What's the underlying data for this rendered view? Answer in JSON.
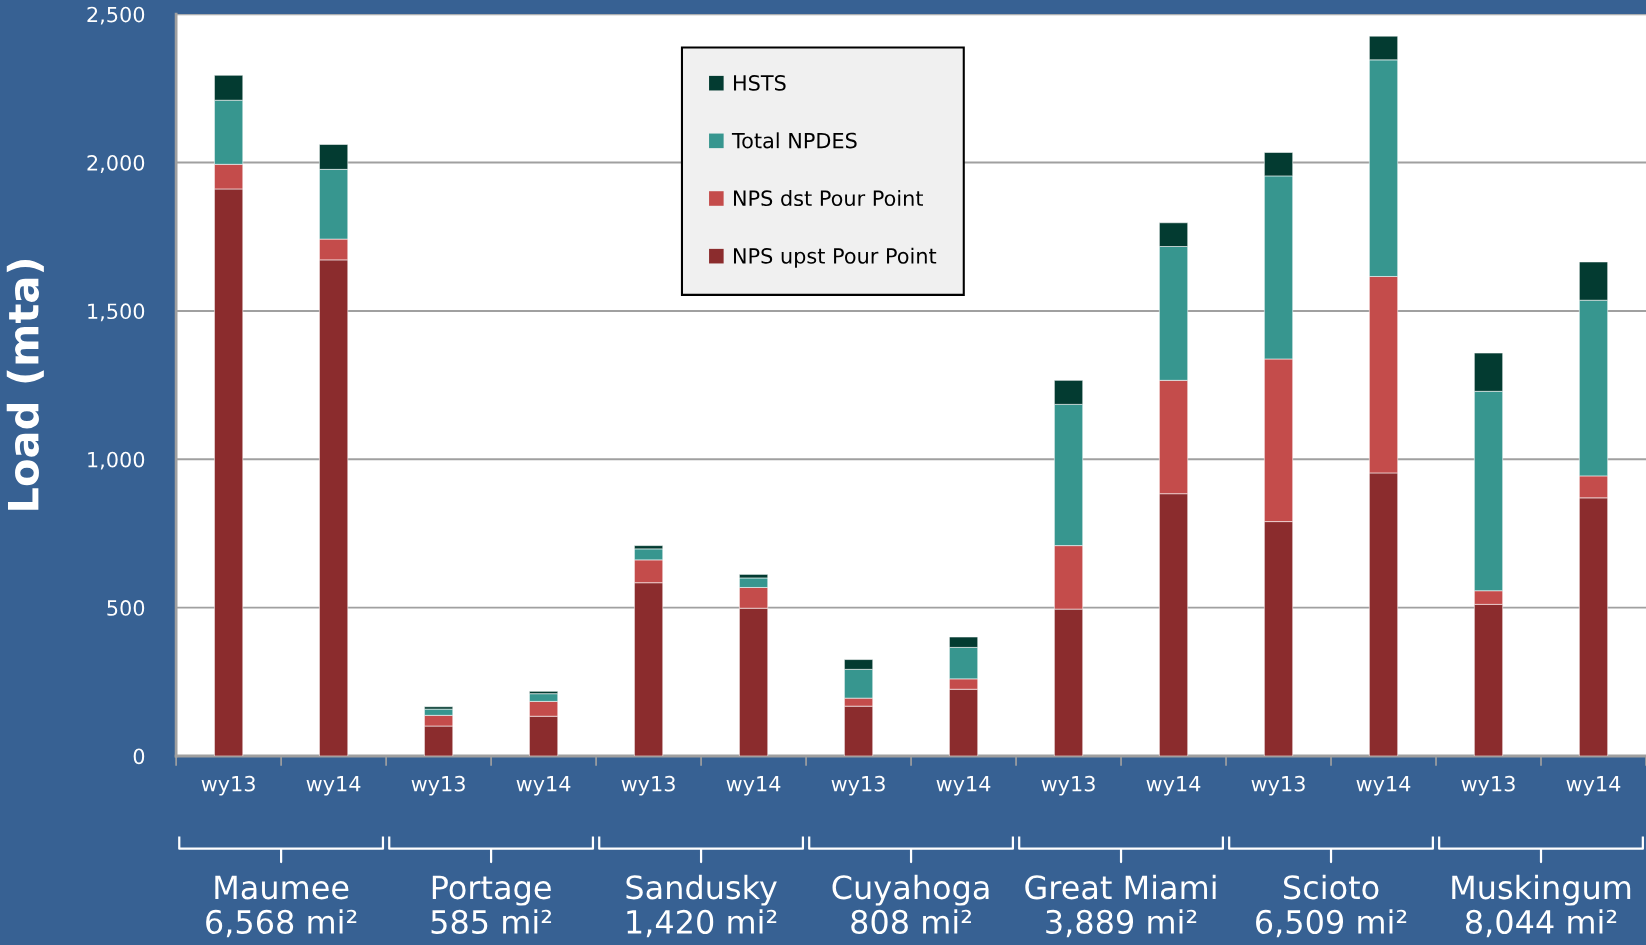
{
  "chart_data": {
    "type": "bar",
    "stacked": true,
    "ylabel": "Load (mta)",
    "categories": [
      "wy13",
      "wy14",
      "wy13",
      "wy14",
      "wy13",
      "wy14",
      "wy13",
      "wy14",
      "wy13",
      "wy14",
      "wy13",
      "wy14",
      "wy13",
      "wy14"
    ],
    "series": [
      {
        "name": "NPS upst Pour Point",
        "color": "#8b2c2d",
        "values": [
          1911,
          1672,
          101,
          134,
          584,
          498,
          168,
          225,
          495,
          884,
          790,
          954,
          511,
          870
        ]
      },
      {
        "name": "NPS dst Pour Point",
        "color": "#c44c4b",
        "values": [
          83,
          70,
          36,
          50,
          77,
          70,
          27,
          35,
          214,
          382,
          548,
          662,
          46,
          74
        ]
      },
      {
        "name": "Total NPDES",
        "color": "#37968f",
        "values": [
          216,
          235,
          21,
          26,
          37,
          32,
          97,
          106,
          476,
          451,
          617,
          730,
          672,
          592
        ]
      },
      {
        "name": "HSTS",
        "color": "#033b31",
        "values": [
          84,
          84,
          8,
          8,
          11,
          12,
          33,
          35,
          81,
          80,
          79,
          80,
          129,
          129
        ]
      }
    ],
    "ylim": [
      0,
      2500
    ],
    "yticks": [
      {
        "value": 0,
        "label": "0"
      },
      {
        "value": 500,
        "label": "500"
      },
      {
        "value": 1000,
        "label": "1,000"
      },
      {
        "value": 1500,
        "label": "1,500"
      },
      {
        "value": 2000,
        "label": "2,000"
      },
      {
        "value": 2500,
        "label": "2,500"
      }
    ],
    "grid": "y",
    "legend": "top",
    "annotations": [
      "Maumee\n6,568 mi²",
      "Portage\n585 mi²",
      "Sandusky\n1,420 mi²",
      "Cuyahoga\n808 mi²",
      "Great Miami\n3,889 mi²",
      "Scioto\n6,509 mi²",
      "Muskingum\n8,044 mi²"
    ]
  }
}
